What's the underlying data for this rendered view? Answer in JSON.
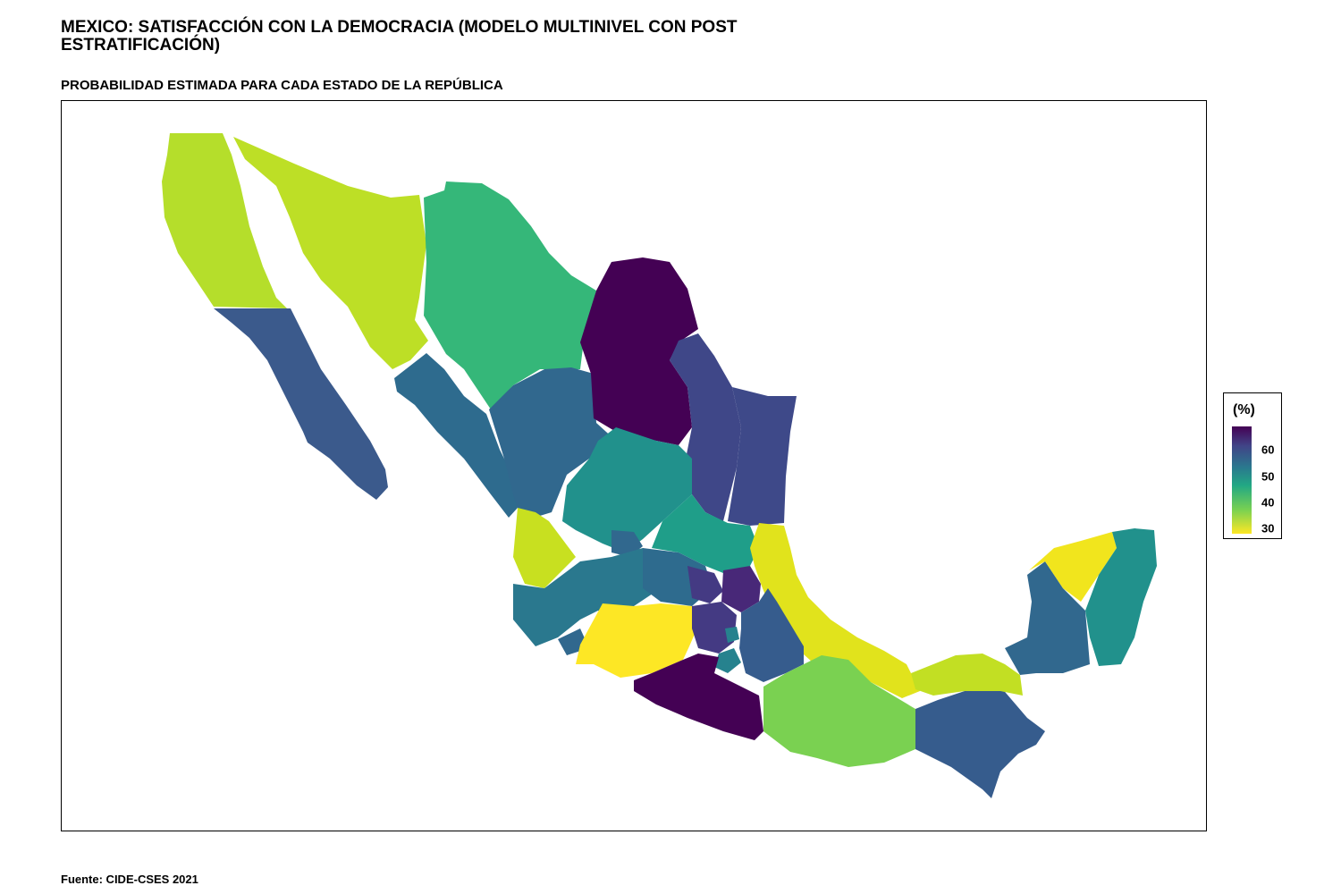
{
  "title": "MEXICO: SATISFACCIÓN CON LA DEMOCRACIA (MODELO MULTINIVEL CON POST ESTRATIFICACIÓN)",
  "subtitle": "PROBABILIDAD ESTIMADA PARA CADA ESTADO DE LA REPÚBLICA",
  "caption": "Fuente: CIDE-CSES 2021",
  "legend": {
    "title": "(%)",
    "ticks": [
      {
        "label": "60",
        "value": 60
      },
      {
        "label": "50",
        "value": 50
      },
      {
        "label": "40",
        "value": 40
      },
      {
        "label": "30",
        "value": 30
      }
    ],
    "min": 28,
    "max": 69,
    "palette": "viridis (reversed)"
  },
  "colors": {
    "c30": "#fde725",
    "c35": "#b5de2b",
    "c40": "#6ece58",
    "c45": "#35b779",
    "c48": "#1f9e89",
    "c52": "#26828e",
    "c55": "#31688e",
    "c60": "#3e4989",
    "c64": "#482878",
    "c68": "#440154"
  }
}
